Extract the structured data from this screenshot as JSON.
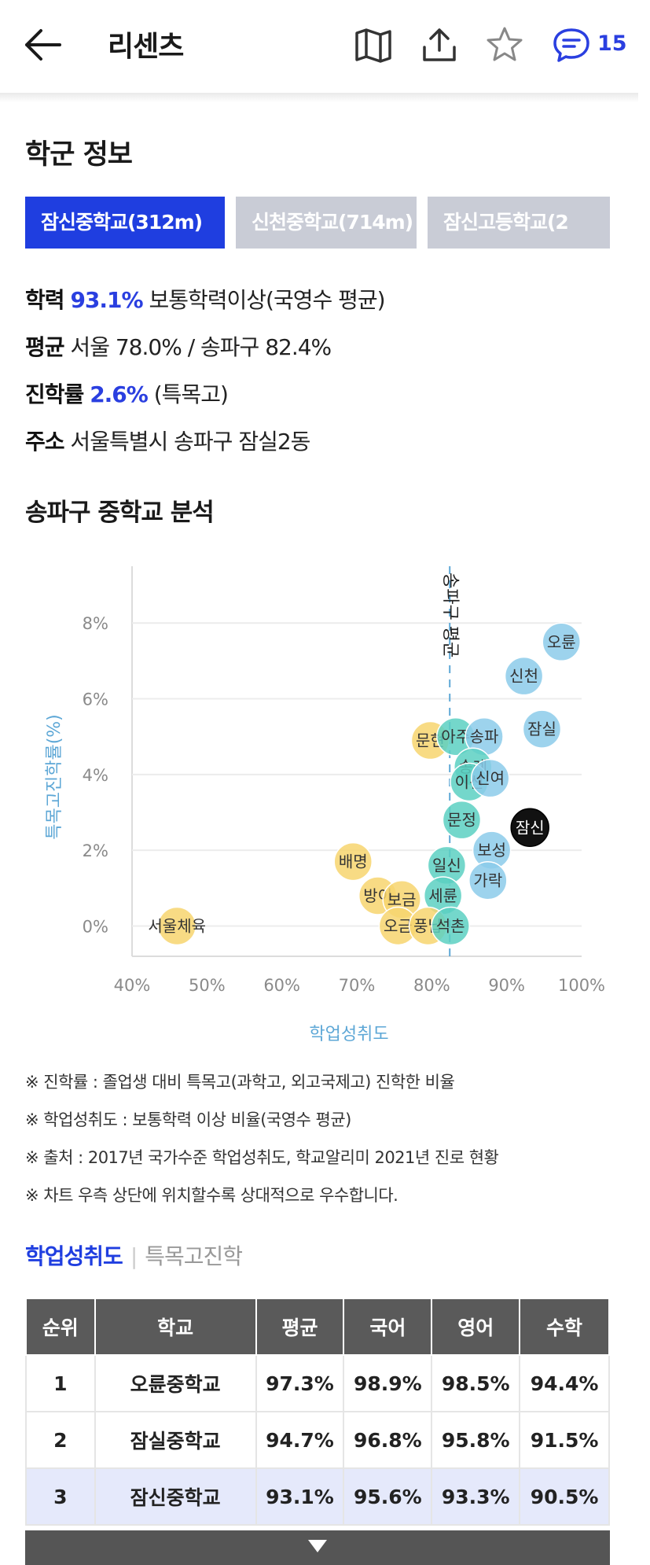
{
  "header": {
    "title": "리센츠",
    "comment_count": "15",
    "icons": [
      "back-arrow-icon",
      "map-icon",
      "share-icon",
      "star-icon",
      "comment-icon"
    ],
    "accent_color": "#2a3fe0"
  },
  "school_section": {
    "title": "학군 정보",
    "tabs": [
      {
        "label": "잠신중학교(312m)",
        "active": true
      },
      {
        "label": "신천중학교(714m)",
        "active": false
      },
      {
        "label": "잠신고등학교(2",
        "active": false
      }
    ],
    "info": [
      {
        "key": "학력",
        "value": "93.1%",
        "suffix": " 보통학력이상(국영수 평균)"
      },
      {
        "key": "평균",
        "value": " 서울 78.0% / 송파구 82.4%"
      },
      {
        "key": "진학률",
        "value": "2.6%",
        "suffix": " (특목고)"
      },
      {
        "key": "주소",
        "value": " 서울특별시 송파구 잠실2동"
      }
    ]
  },
  "analysis_title": "송파구 중학교 분석",
  "chart_data": {
    "type": "scatter",
    "xlabel": "학업성취도",
    "ylabel": "특목고진학률(%)",
    "x_ticks": [
      "40%",
      "50%",
      "60%",
      "70%",
      "80%",
      "90%",
      "100%"
    ],
    "y_ticks": [
      "0%",
      "2%",
      "4%",
      "6%",
      "8%"
    ],
    "xlim": [
      40,
      100
    ],
    "ylim": [
      -0.8,
      9.5
    ],
    "ref_line": {
      "label": "송파구 평균",
      "x": 82.4
    },
    "grid": true,
    "colors": {
      "blue": "#8ccbea",
      "teal": "#5cd0c2",
      "yellow": "#f7d56e",
      "black": "#111111"
    },
    "points": [
      {
        "label": "오륜",
        "x": 97.3,
        "y": 7.5,
        "color": "blue"
      },
      {
        "label": "신천",
        "x": 92.3,
        "y": 6.6,
        "color": "blue"
      },
      {
        "label": "잠실",
        "x": 94.7,
        "y": 5.2,
        "color": "blue"
      },
      {
        "label": "문현",
        "x": 79.8,
        "y": 4.9,
        "color": "yellow"
      },
      {
        "label": "아주",
        "x": 83.2,
        "y": 5.0,
        "color": "teal"
      },
      {
        "label": "송파",
        "x": 87.0,
        "y": 5.0,
        "color": "blue"
      },
      {
        "label": "송례",
        "x": 85.5,
        "y": 4.2,
        "color": "teal"
      },
      {
        "label": "이선",
        "x": 85.0,
        "y": 3.8,
        "color": "teal"
      },
      {
        "label": "신여",
        "x": 87.8,
        "y": 3.9,
        "color": "blue"
      },
      {
        "label": "잠신",
        "x": 93.1,
        "y": 2.6,
        "color": "black"
      },
      {
        "label": "문정",
        "x": 84.0,
        "y": 2.8,
        "color": "teal"
      },
      {
        "label": "보성",
        "x": 88.0,
        "y": 2.0,
        "color": "blue"
      },
      {
        "label": "배명",
        "x": 69.5,
        "y": 1.7,
        "color": "yellow"
      },
      {
        "label": "일신",
        "x": 82.0,
        "y": 1.6,
        "color": "teal"
      },
      {
        "label": "가락",
        "x": 87.5,
        "y": 1.2,
        "color": "blue"
      },
      {
        "label": "방이",
        "x": 72.8,
        "y": 0.8,
        "color": "yellow"
      },
      {
        "label": "보금",
        "x": 76.0,
        "y": 0.7,
        "color": "yellow"
      },
      {
        "label": "세륜",
        "x": 81.5,
        "y": 0.8,
        "color": "teal"
      },
      {
        "label": "오금",
        "x": 75.5,
        "y": 0.0,
        "color": "yellow"
      },
      {
        "label": "풍납",
        "x": 79.5,
        "y": 0.0,
        "color": "yellow"
      },
      {
        "label": "석촌",
        "x": 82.5,
        "y": 0.0,
        "color": "teal"
      },
      {
        "label": "서울체육",
        "x": 46.0,
        "y": 0.0,
        "color": "yellow"
      }
    ]
  },
  "notes": [
    "※ 진학률 : 졸업생 대비 특목고(과학고, 외고국제고) 진학한 비율",
    "※ 학업성취도 : 보통학력 이상 비율(국영수 평균)",
    "※ 출처 : 2017년 국가수준 학업성취도, 학교알리미 2021년 진로 현황",
    "※ 차트 우측 상단에 위치할수록 상대적으로 우수합니다."
  ],
  "subtabs": {
    "active": "학업성취도",
    "inactive": "특목고진학"
  },
  "table": {
    "headers": [
      "순위",
      "학교",
      "평균",
      "국어",
      "영어",
      "수학"
    ],
    "rows": [
      [
        "1",
        "오륜중학교",
        "97.3%",
        "98.9%",
        "98.5%",
        "94.4%"
      ],
      [
        "2",
        "잠실중학교",
        "94.7%",
        "96.8%",
        "95.8%",
        "91.5%"
      ],
      [
        "3",
        "잠신중학교",
        "93.1%",
        "95.6%",
        "93.3%",
        "90.5%"
      ]
    ],
    "highlight_row": 2
  }
}
